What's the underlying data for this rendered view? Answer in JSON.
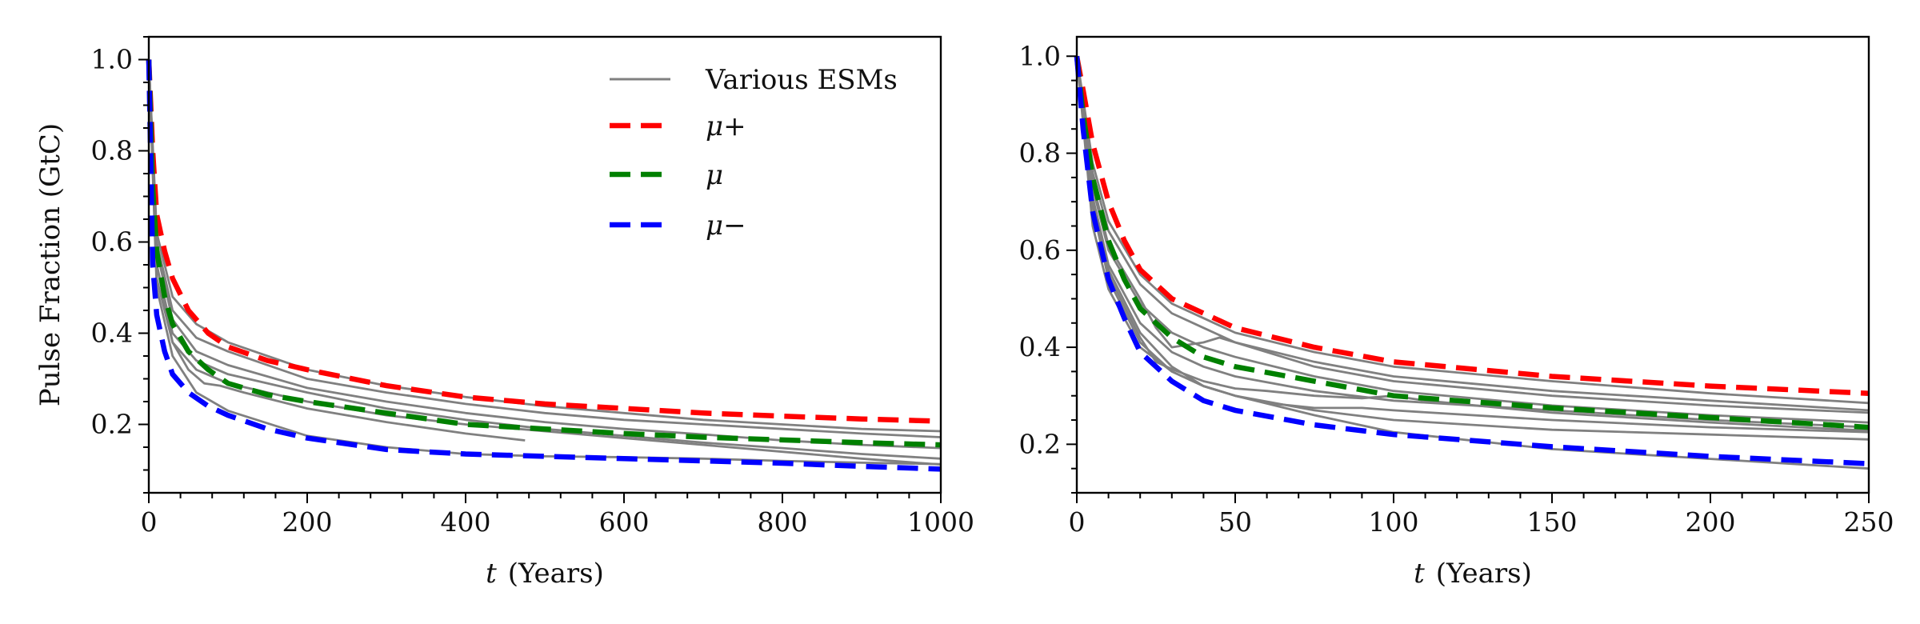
{
  "chart_data": [
    {
      "type": "line",
      "panel": "left",
      "title": "",
      "xlabel": "(Years)",
      "xlabel_var": "t",
      "ylabel": "Pulse Fraction (GtC)",
      "xlim": [
        0,
        1000
      ],
      "ylim": [
        0.05,
        1.05
      ],
      "xticks": [
        0,
        200,
        400,
        600,
        800,
        1000
      ],
      "yticks": [
        0.2,
        0.4,
        0.6,
        0.8,
        1.0
      ],
      "xtick_labels": [
        "0",
        "200",
        "400",
        "600",
        "800",
        "1000"
      ],
      "ytick_labels": [
        "0.2",
        "0.4",
        "0.6",
        "0.8",
        "1.0"
      ],
      "legend": {
        "placement": "top-right",
        "entries": [
          {
            "label": "Various ESMs",
            "color": "#808080",
            "style": "solid"
          },
          {
            "label": "μ+",
            "color": "#ff0000",
            "style": "dashed"
          },
          {
            "label": "μ",
            "color": "#008000",
            "style": "dashed"
          },
          {
            "label": "μ−",
            "color": "#0000ff",
            "style": "dashed"
          }
        ]
      },
      "series": [
        {
          "name": "μ+",
          "color": "#ff0000",
          "style": "dashed",
          "x": [
            0,
            5,
            10,
            20,
            30,
            50,
            75,
            100,
            150,
            200,
            300,
            400,
            500,
            600,
            700,
            800,
            900,
            1000
          ],
          "y": [
            1.0,
            0.8,
            0.66,
            0.58,
            0.52,
            0.45,
            0.4,
            0.37,
            0.34,
            0.32,
            0.285,
            0.26,
            0.245,
            0.235,
            0.225,
            0.218,
            0.212,
            0.207
          ]
        },
        {
          "name": "μ",
          "color": "#008000",
          "style": "dashed",
          "x": [
            0,
            5,
            10,
            20,
            30,
            50,
            75,
            100,
            150,
            200,
            300,
            400,
            500,
            600,
            700,
            800,
            900,
            1000
          ],
          "y": [
            1.0,
            0.72,
            0.58,
            0.48,
            0.42,
            0.36,
            0.32,
            0.29,
            0.265,
            0.25,
            0.225,
            0.2,
            0.19,
            0.18,
            0.172,
            0.166,
            0.16,
            0.155
          ]
        },
        {
          "name": "μ−",
          "color": "#0000ff",
          "style": "dashed",
          "x": [
            0,
            5,
            10,
            20,
            30,
            50,
            75,
            100,
            150,
            200,
            300,
            400,
            500,
            600,
            700,
            800,
            900,
            1000
          ],
          "y": [
            1.0,
            0.55,
            0.44,
            0.36,
            0.31,
            0.27,
            0.24,
            0.22,
            0.19,
            0.17,
            0.145,
            0.135,
            0.13,
            0.125,
            0.12,
            0.115,
            0.108,
            0.102
          ]
        },
        {
          "color": "#808080",
          "style": "solid",
          "x": [
            0,
            10,
            30,
            60,
            100,
            200,
            300,
            400,
            500,
            600,
            700,
            800,
            900,
            1000
          ],
          "y": [
            1.0,
            0.62,
            0.48,
            0.42,
            0.38,
            0.32,
            0.285,
            0.26,
            0.24,
            0.225,
            0.21,
            0.2,
            0.19,
            0.185
          ]
        },
        {
          "color": "#808080",
          "style": "solid",
          "x": [
            0,
            10,
            30,
            60,
            100,
            200,
            300,
            400,
            500,
            600,
            700,
            800,
            900,
            1000
          ],
          "y": [
            1.0,
            0.6,
            0.45,
            0.39,
            0.36,
            0.3,
            0.27,
            0.245,
            0.225,
            0.21,
            0.2,
            0.19,
            0.18,
            0.172
          ]
        },
        {
          "color": "#808080",
          "style": "solid",
          "x": [
            0,
            10,
            30,
            60,
            100,
            200,
            300,
            400,
            500,
            600,
            700,
            800,
            900,
            1000
          ],
          "y": [
            1.0,
            0.58,
            0.43,
            0.36,
            0.33,
            0.28,
            0.25,
            0.225,
            0.205,
            0.19,
            0.178,
            0.165,
            0.155,
            0.148
          ]
        },
        {
          "color": "#808080",
          "style": "solid",
          "x": [
            0,
            10,
            30,
            60,
            100,
            200,
            300,
            400,
            500,
            600,
            700,
            800,
            900,
            1000
          ],
          "y": [
            1.0,
            0.55,
            0.4,
            0.34,
            0.31,
            0.27,
            0.235,
            0.21,
            0.19,
            0.175,
            0.16,
            0.148,
            0.135,
            0.125
          ]
        },
        {
          "color": "#808080",
          "style": "solid",
          "x": [
            0,
            10,
            30,
            50,
            70,
            90,
            120,
            200,
            300,
            400,
            475
          ],
          "y": [
            1.0,
            0.55,
            0.38,
            0.32,
            0.29,
            0.285,
            0.27,
            0.235,
            0.205,
            0.18,
            0.165
          ]
        },
        {
          "color": "#808080",
          "style": "solid",
          "x": [
            0,
            10,
            30,
            60,
            100,
            200,
            300,
            400,
            500,
            600,
            700,
            800,
            900,
            1000
          ],
          "y": [
            1.0,
            0.52,
            0.38,
            0.32,
            0.29,
            0.25,
            0.22,
            0.2,
            0.185,
            0.17,
            0.155,
            0.14,
            0.125,
            0.112
          ]
        },
        {
          "color": "#808080",
          "style": "solid",
          "x": [
            0,
            10,
            30,
            60,
            100,
            200,
            300,
            400,
            500,
            600,
            700,
            800,
            900,
            1000
          ],
          "y": [
            1.0,
            0.5,
            0.35,
            0.27,
            0.23,
            0.175,
            0.15,
            0.135,
            0.13,
            0.128,
            0.125,
            0.12,
            0.116,
            0.113
          ]
        }
      ]
    },
    {
      "type": "line",
      "panel": "right",
      "title": "",
      "xlabel": "(Years)",
      "xlabel_var": "t",
      "ylabel": "",
      "xlim": [
        0,
        250
      ],
      "ylim": [
        0.1,
        1.04
      ],
      "xticks": [
        0,
        50,
        100,
        150,
        200,
        250
      ],
      "yticks": [
        0.2,
        0.4,
        0.6,
        0.8,
        1.0
      ],
      "xtick_labels": [
        "0",
        "50",
        "100",
        "150",
        "200",
        "250"
      ],
      "ytick_labels": [
        "0.2",
        "0.4",
        "0.6",
        "0.8",
        "1.0"
      ],
      "series": [
        {
          "name": "μ+",
          "color": "#ff0000",
          "style": "dashed",
          "x": [
            0,
            2,
            5,
            10,
            15,
            20,
            30,
            40,
            50,
            75,
            100,
            150,
            200,
            250
          ],
          "y": [
            1.0,
            0.93,
            0.82,
            0.7,
            0.62,
            0.56,
            0.5,
            0.47,
            0.44,
            0.4,
            0.37,
            0.34,
            0.32,
            0.305
          ]
        },
        {
          "name": "μ",
          "color": "#008000",
          "style": "dashed",
          "x": [
            0,
            2,
            5,
            10,
            15,
            20,
            30,
            40,
            50,
            75,
            100,
            150,
            200,
            250
          ],
          "y": [
            1.0,
            0.88,
            0.75,
            0.62,
            0.54,
            0.48,
            0.42,
            0.38,
            0.36,
            0.33,
            0.3,
            0.275,
            0.255,
            0.235
          ]
        },
        {
          "name": "μ−",
          "color": "#0000ff",
          "style": "dashed",
          "x": [
            0,
            2,
            5,
            10,
            15,
            20,
            30,
            40,
            50,
            75,
            100,
            150,
            200,
            250
          ],
          "y": [
            1.0,
            0.85,
            0.68,
            0.54,
            0.46,
            0.39,
            0.33,
            0.29,
            0.27,
            0.24,
            0.22,
            0.195,
            0.175,
            0.16
          ]
        },
        {
          "color": "#808080",
          "style": "solid",
          "x": [
            0,
            5,
            10,
            20,
            30,
            40,
            50,
            75,
            100,
            150,
            200,
            250
          ],
          "y": [
            1.0,
            0.78,
            0.66,
            0.55,
            0.49,
            0.46,
            0.43,
            0.39,
            0.36,
            0.33,
            0.305,
            0.285
          ]
        },
        {
          "color": "#808080",
          "style": "solid",
          "x": [
            0,
            5,
            10,
            20,
            30,
            40,
            50,
            75,
            100,
            150,
            200,
            250
          ],
          "y": [
            1.0,
            0.76,
            0.64,
            0.53,
            0.47,
            0.44,
            0.41,
            0.37,
            0.34,
            0.31,
            0.29,
            0.27
          ]
        },
        {
          "color": "#808080",
          "style": "solid",
          "x": [
            0,
            5,
            10,
            20,
            25,
            30,
            40,
            45,
            50,
            60,
            75,
            100,
            150,
            200,
            250
          ],
          "y": [
            1.0,
            0.74,
            0.61,
            0.5,
            0.44,
            0.4,
            0.41,
            0.42,
            0.41,
            0.39,
            0.36,
            0.33,
            0.3,
            0.28,
            0.265
          ]
        },
        {
          "color": "#808080",
          "style": "solid",
          "x": [
            0,
            5,
            10,
            20,
            30,
            40,
            50,
            75,
            100,
            150,
            200,
            250
          ],
          "y": [
            1.0,
            0.73,
            0.6,
            0.49,
            0.43,
            0.4,
            0.38,
            0.34,
            0.31,
            0.28,
            0.26,
            0.245
          ]
        },
        {
          "color": "#808080",
          "style": "solid",
          "x": [
            0,
            5,
            10,
            20,
            30,
            40,
            50,
            75,
            100,
            150,
            200,
            250
          ],
          "y": [
            1.0,
            0.71,
            0.57,
            0.45,
            0.39,
            0.36,
            0.34,
            0.31,
            0.29,
            0.27,
            0.25,
            0.235
          ]
        },
        {
          "color": "#808080",
          "style": "solid",
          "x": [
            0,
            5,
            10,
            20,
            25,
            30,
            40,
            50,
            60,
            75,
            90,
            100,
            110,
            150,
            200,
            250
          ],
          "y": [
            1.0,
            0.7,
            0.55,
            0.42,
            0.37,
            0.355,
            0.33,
            0.315,
            0.31,
            0.3,
            0.295,
            0.3,
            0.29,
            0.265,
            0.245,
            0.228
          ]
        },
        {
          "color": "#808080",
          "style": "solid",
          "x": [
            0,
            5,
            10,
            20,
            30,
            40,
            50,
            60,
            75,
            90,
            100,
            150,
            200,
            250
          ],
          "y": [
            1.0,
            0.69,
            0.54,
            0.41,
            0.35,
            0.32,
            0.3,
            0.285,
            0.275,
            0.275,
            0.27,
            0.25,
            0.235,
            0.225
          ]
        },
        {
          "color": "#808080",
          "style": "solid",
          "x": [
            0,
            5,
            10,
            20,
            30,
            40,
            50,
            75,
            100,
            150,
            200,
            250
          ],
          "y": [
            1.0,
            0.7,
            0.56,
            0.43,
            0.36,
            0.32,
            0.3,
            0.27,
            0.25,
            0.23,
            0.22,
            0.21
          ]
        },
        {
          "color": "#808080",
          "style": "solid",
          "x": [
            0,
            5,
            10,
            20,
            30,
            40,
            50,
            75,
            100,
            150,
            200,
            250
          ],
          "y": [
            1.0,
            0.65,
            0.52,
            0.4,
            0.35,
            0.32,
            0.3,
            0.26,
            0.225,
            0.19,
            0.17,
            0.15
          ]
        }
      ]
    }
  ]
}
